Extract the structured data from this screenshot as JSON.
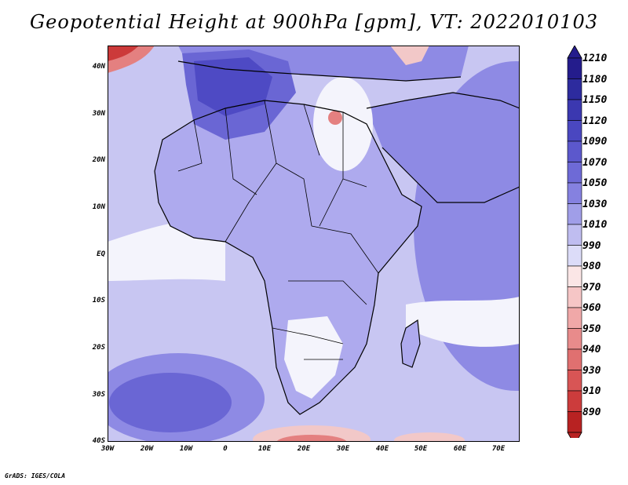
{
  "title": "Geopotential Height at 900hPa [gpm], VT: 2022010103",
  "footer": "GrADS: IGES/COLA",
  "lat_labels": [
    "40N",
    "30N",
    "20N",
    "10N",
    "EQ",
    "10S",
    "20S",
    "30S",
    "40S"
  ],
  "lon_labels": [
    "30W",
    "20W",
    "10W",
    "0",
    "10E",
    "20E",
    "30E",
    "40E",
    "50E",
    "60E",
    "70E"
  ],
  "colorbar": {
    "labels": [
      "1210",
      "1180",
      "1150",
      "1120",
      "1090",
      "1070",
      "1050",
      "1030",
      "1010",
      "990",
      "980",
      "970",
      "960",
      "950",
      "940",
      "930",
      "910",
      "890"
    ],
    "colors": [
      "#241c8c",
      "#2d2b9e",
      "#3b38b0",
      "#4a47c0",
      "#5c58cc",
      "#6e6ad6",
      "#8581e0",
      "#a09ee8",
      "#bfbdf0",
      "#dcdcf8",
      "#fbe6e6",
      "#f6c6c6",
      "#f0a8a8",
      "#e88b8b",
      "#e07070",
      "#d85555",
      "#cc3c3c",
      "#b82222"
    ]
  },
  "map_colors": {
    "ocean_base": "#c8c6f2",
    "land_base": "#aeaaee",
    "high_1": "#8e8ae4",
    "high_2": "#6a66d4",
    "high_3": "#4e4ac4",
    "neutral": "#f4f4fc",
    "low_1": "#f2c8c8",
    "low_2": "#e48080",
    "low_3": "#cc3a3a",
    "coast": "#000000"
  }
}
